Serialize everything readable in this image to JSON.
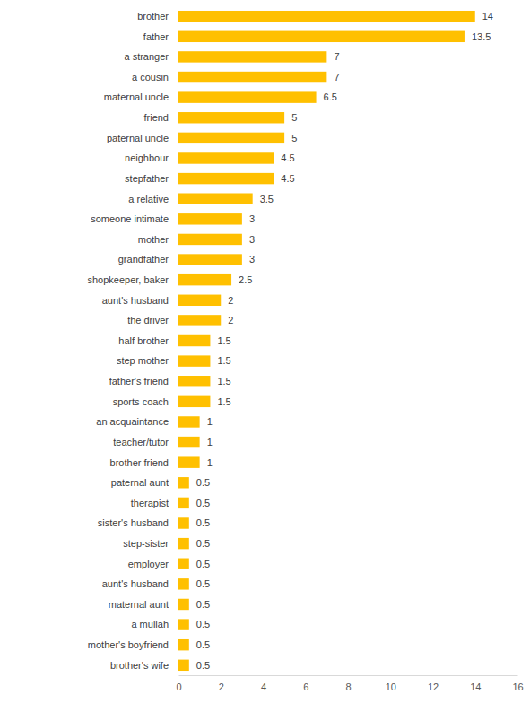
{
  "chart_data": {
    "type": "bar",
    "orientation": "horizontal",
    "data_labels": true,
    "grid": false,
    "color": "#ffc000",
    "categories": [
      "brother",
      "father",
      "a stranger",
      "a cousin",
      "maternal uncle",
      "friend",
      "paternal uncle",
      "neighbour",
      "stepfather",
      "a relative",
      "someone intimate",
      "mother",
      "grandfather",
      "shopkeeper, baker",
      "aunt's husband",
      "the driver",
      "half brother",
      "step mother",
      "father's friend",
      "sports coach",
      "an acquaintance",
      "teacher/tutor",
      "brother friend",
      "paternal aunt",
      "therapist",
      "sister's husband",
      "step-sister",
      "employer",
      "aunt's husband",
      "maternal aunt",
      "a mullah",
      "mother's boyfriend",
      "brother's wife"
    ],
    "values": [
      14,
      13.5,
      7,
      7,
      6.5,
      5,
      5,
      4.5,
      4.5,
      3.5,
      3,
      3,
      3,
      2.5,
      2,
      2,
      1.5,
      1.5,
      1.5,
      1.5,
      1,
      1,
      1,
      0.5,
      0.5,
      0.5,
      0.5,
      0.5,
      0.5,
      0.5,
      0.5,
      0.5,
      0.5
    ],
    "xlim": [
      0,
      16
    ],
    "xticks": [
      0,
      2,
      4,
      6,
      8,
      10,
      12,
      14,
      16
    ]
  }
}
